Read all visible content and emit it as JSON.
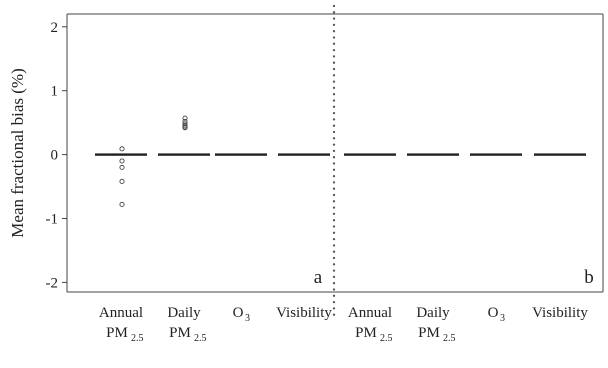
{
  "chart_data": {
    "type": "box",
    "ylabel": "Mean fractional bias (%)",
    "ylim": [
      -2.15,
      2.2
    ],
    "yticks": [
      -2,
      -1,
      0,
      1,
      2
    ],
    "yticklabels": [
      "-2",
      "-1",
      "0",
      "1",
      "2"
    ],
    "grid": false,
    "legend": "none",
    "panel_labels": [
      "a",
      "b"
    ],
    "categories": [
      {
        "name": "Annual",
        "sub": "PM",
        "subscript": "2.5",
        "panel": "a",
        "median": 0,
        "outliers": [
          0.09,
          -0.1,
          -0.2,
          -0.42,
          -0.78
        ]
      },
      {
        "name": "Daily",
        "sub": "PM",
        "subscript": "2.5",
        "panel": "a",
        "median": 0,
        "outliers": [
          0.57,
          0.52,
          0.48,
          0.45,
          0.43,
          0.42
        ]
      },
      {
        "name": "O",
        "subscript": "3",
        "panel": "a",
        "median": 0,
        "outliers": []
      },
      {
        "name": "Visibility",
        "panel": "a",
        "median": 0,
        "outliers": []
      },
      {
        "name": "Annual",
        "sub": "PM",
        "subscript": "2.5",
        "panel": "b",
        "median": 0,
        "outliers": []
      },
      {
        "name": "Daily",
        "sub": "PM",
        "subscript": "2.5",
        "panel": "b",
        "median": 0,
        "outliers": []
      },
      {
        "name": "O",
        "subscript": "3",
        "panel": "b",
        "median": 0,
        "outliers": []
      },
      {
        "name": "Visibility",
        "panel": "b",
        "median": 0,
        "outliers": []
      }
    ],
    "colors": {
      "box": "#222222",
      "outlier": "#444444",
      "divider": "#555555",
      "axis": "#444444"
    }
  }
}
